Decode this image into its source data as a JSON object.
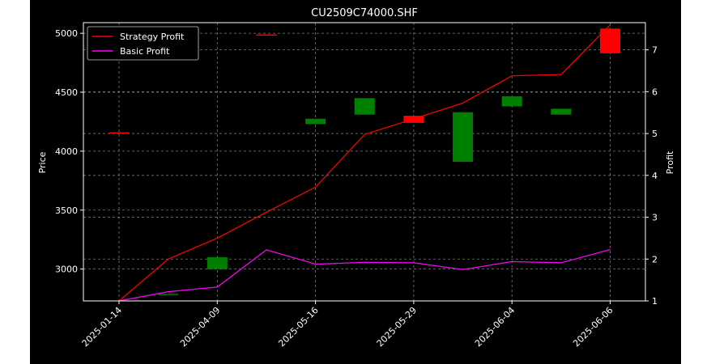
{
  "chart_data": {
    "type": "candlestick+line",
    "title": "CU2509C74000.SHF",
    "ylabel_left": "Price",
    "ylabel_right": "Profit",
    "ylim_left": [
      2730,
      5090
    ],
    "ylim_right": [
      1,
      7.65
    ],
    "yticks_left": [
      3000,
      3500,
      4000,
      4500,
      5000
    ],
    "yticks_right": [
      1,
      2,
      3,
      4,
      5,
      6,
      7
    ],
    "grid": true,
    "legend_position": "upper-left",
    "x_tick_labels": [
      "2025-01-14",
      "2025-04-09",
      "2025-05-16",
      "2025-05-29",
      "2025-06-04",
      "2025-06-06"
    ],
    "x_tick_indices": [
      0,
      2,
      4,
      6,
      8,
      10
    ],
    "candles": [
      {
        "index": 0,
        "open": 4160,
        "close": 4160,
        "color": "#ff0000"
      },
      {
        "index": 1,
        "open": 2790,
        "close": 2780,
        "color": "#008000"
      },
      {
        "index": 2,
        "open": 3100,
        "close": 3000,
        "color": "#008000"
      },
      {
        "index": 3,
        "open": 4990,
        "close": 4990,
        "color": "#ff0000"
      },
      {
        "index": 4,
        "open": 4275,
        "close": 4230,
        "color": "#008000"
      },
      {
        "index": 5,
        "open": 4450,
        "close": 4310,
        "color": "#008000"
      },
      {
        "index": 6,
        "open": 4240,
        "close": 4300,
        "color": "#ff0000"
      },
      {
        "index": 7,
        "open": 4330,
        "close": 3910,
        "color": "#008000"
      },
      {
        "index": 8,
        "open": 4465,
        "close": 4380,
        "color": "#008000"
      },
      {
        "index": 9,
        "open": 4360,
        "close": 4310,
        "color": "#008000"
      },
      {
        "index": 10,
        "open": 4830,
        "close": 5040,
        "color": "#ff0000"
      }
    ],
    "series": [
      {
        "name": "Strategy Profit",
        "color": "#ff0000",
        "values": [
          1.0,
          2.0,
          2.5,
          3.12,
          3.72,
          4.98,
          5.35,
          5.73,
          6.38,
          6.41,
          7.6
        ]
      },
      {
        "name": "Basic Profit",
        "color": "#ff00ff",
        "values": [
          1.0,
          1.22,
          1.33,
          2.22,
          1.88,
          1.92,
          1.91,
          1.75,
          1.94,
          1.91,
          2.23
        ]
      }
    ]
  }
}
